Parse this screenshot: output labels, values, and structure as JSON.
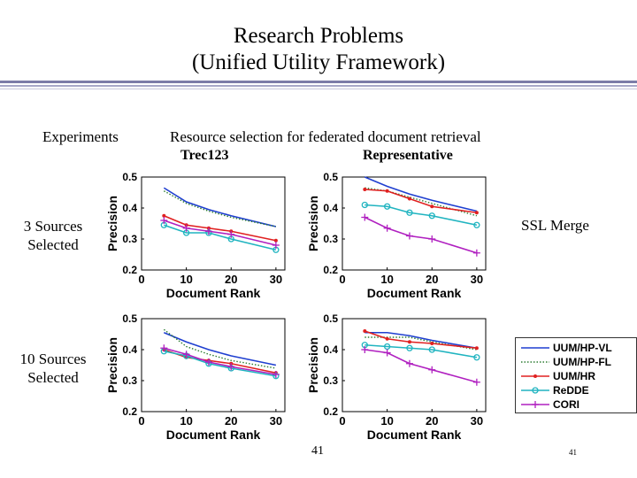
{
  "slide": {
    "title_line1": "Research Problems",
    "title_line2": "(Unified Utility Framework)",
    "experiments_label": "Experiments",
    "subtitle": "Resource selection for federated document retrieval",
    "col_left_label": "Trec123",
    "col_right_label": "Representative",
    "row1_label_line1": "3 Sources",
    "row1_label_line2": "Selected",
    "row2_label_line1": "10 Sources",
    "row2_label_line2": "Selected",
    "merge_label": "SSL Merge",
    "page_number": "41",
    "page_number_small": "41"
  },
  "colors": {
    "UUM/HP-VL": "#1f3fd0",
    "UUM/HP-FL": "#2e7d32",
    "UUM/HR": "#e02020",
    "ReDDE": "#20b4c0",
    "CORI": "#b020c0"
  },
  "legend": [
    {
      "name": "UUM/HP-VL",
      "style": "solid"
    },
    {
      "name": "UUM/HP-FL",
      "style": "dotted"
    },
    {
      "name": "UUM/HR",
      "style": "solid-star"
    },
    {
      "name": "ReDDE",
      "style": "solid-circle"
    },
    {
      "name": "CORI",
      "style": "solid-plus"
    }
  ],
  "chart_data": [
    {
      "type": "line",
      "panel": "trec123-3",
      "xlabel": "Document Rank",
      "ylabel": "Precision",
      "x": [
        5,
        10,
        15,
        20,
        30
      ],
      "xticks": [
        0,
        10,
        20,
        30
      ],
      "yticks": [
        0.2,
        0.3,
        0.4,
        0.5
      ],
      "xlim": [
        0,
        32
      ],
      "ylim": [
        0.2,
        0.5
      ],
      "series": [
        {
          "name": "UUM/HP-VL",
          "values": [
            0.465,
            0.42,
            0.395,
            0.375,
            0.34
          ]
        },
        {
          "name": "UUM/HP-FL",
          "values": [
            0.455,
            0.415,
            0.39,
            0.37,
            0.34
          ]
        },
        {
          "name": "UUM/HR",
          "values": [
            0.375,
            0.345,
            0.335,
            0.325,
            0.295
          ]
        },
        {
          "name": "ReDDE",
          "values": [
            0.345,
            0.32,
            0.32,
            0.3,
            0.265
          ]
        },
        {
          "name": "CORI",
          "values": [
            0.36,
            0.335,
            0.325,
            0.315,
            0.28
          ]
        }
      ]
    },
    {
      "type": "line",
      "panel": "representative-3",
      "xlabel": "Document Rank",
      "ylabel": "Precision",
      "x": [
        5,
        10,
        15,
        20,
        30
      ],
      "xticks": [
        0,
        10,
        20,
        30
      ],
      "yticks": [
        0.2,
        0.3,
        0.4,
        0.5
      ],
      "xlim": [
        0,
        32
      ],
      "ylim": [
        0.2,
        0.5
      ],
      "series": [
        {
          "name": "UUM/HP-VL",
          "values": [
            0.5,
            0.47,
            0.445,
            0.425,
            0.39
          ]
        },
        {
          "name": "UUM/HP-FL",
          "values": [
            0.465,
            0.455,
            0.435,
            0.415,
            0.375
          ]
        },
        {
          "name": "UUM/HR",
          "values": [
            0.46,
            0.455,
            0.43,
            0.405,
            0.385
          ]
        },
        {
          "name": "ReDDE",
          "values": [
            0.41,
            0.405,
            0.385,
            0.375,
            0.345
          ]
        },
        {
          "name": "CORI",
          "values": [
            0.37,
            0.335,
            0.31,
            0.3,
            0.255
          ]
        }
      ]
    },
    {
      "type": "line",
      "panel": "trec123-10",
      "xlabel": "Document Rank",
      "ylabel": "Precision",
      "x": [
        5,
        10,
        15,
        20,
        30
      ],
      "xticks": [
        0,
        10,
        20,
        30
      ],
      "yticks": [
        0.2,
        0.3,
        0.4,
        0.5
      ],
      "xlim": [
        0,
        32
      ],
      "ylim": [
        0.2,
        0.5
      ],
      "series": [
        {
          "name": "UUM/HP-VL",
          "values": [
            0.455,
            0.425,
            0.4,
            0.38,
            0.35
          ]
        },
        {
          "name": "UUM/HP-FL",
          "values": [
            0.465,
            0.41,
            0.385,
            0.365,
            0.34
          ]
        },
        {
          "name": "UUM/HR",
          "values": [
            0.4,
            0.375,
            0.365,
            0.355,
            0.325
          ]
        },
        {
          "name": "ReDDE",
          "values": [
            0.395,
            0.38,
            0.355,
            0.34,
            0.315
          ]
        },
        {
          "name": "CORI",
          "values": [
            0.405,
            0.385,
            0.36,
            0.345,
            0.32
          ]
        }
      ]
    },
    {
      "type": "line",
      "panel": "representative-10",
      "xlabel": "Document Rank",
      "ylabel": "Precision",
      "x": [
        5,
        10,
        15,
        20,
        30
      ],
      "xticks": [
        0,
        10,
        20,
        30
      ],
      "yticks": [
        0.2,
        0.3,
        0.4,
        0.5
      ],
      "xlim": [
        0,
        32
      ],
      "ylim": [
        0.2,
        0.5
      ],
      "series": [
        {
          "name": "UUM/HP-VL",
          "values": [
            0.455,
            0.455,
            0.445,
            0.43,
            0.405
          ]
        },
        {
          "name": "UUM/HP-FL",
          "values": [
            0.44,
            0.44,
            0.44,
            0.425,
            0.4
          ]
        },
        {
          "name": "UUM/HR",
          "values": [
            0.46,
            0.435,
            0.425,
            0.42,
            0.405
          ]
        },
        {
          "name": "ReDDE",
          "values": [
            0.415,
            0.41,
            0.405,
            0.4,
            0.375
          ]
        },
        {
          "name": "CORI",
          "values": [
            0.4,
            0.39,
            0.355,
            0.335,
            0.295
          ]
        }
      ]
    }
  ]
}
